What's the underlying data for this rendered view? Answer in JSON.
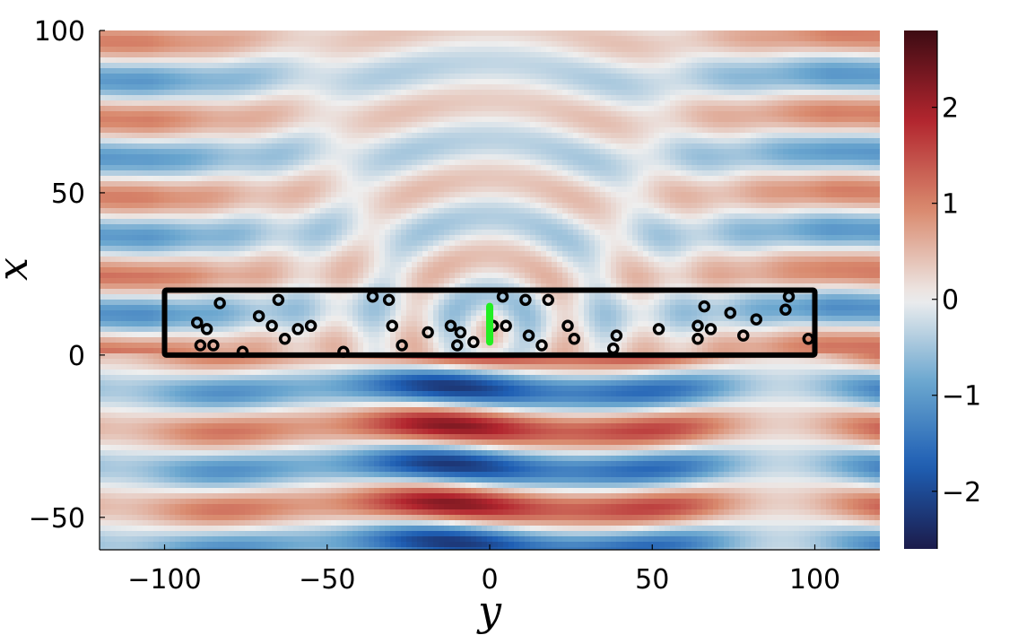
{
  "chart_data": {
    "type": "heatmap",
    "title": "",
    "xlabel": "y",
    "ylabel": "x",
    "xlim": [
      -120,
      120
    ],
    "ylim": [
      -60,
      100
    ],
    "xticks": [
      -100,
      -50,
      0,
      50,
      100
    ],
    "yticks": [
      -50,
      0,
      50,
      100
    ],
    "xtick_labels": [
      "−100",
      "−50",
      "0",
      "50",
      "100"
    ],
    "ytick_labels": [
      "−50",
      "0",
      "50",
      "100"
    ],
    "colorbar": {
      "range": [
        -2.6,
        2.8
      ],
      "ticks": [
        -2,
        -1,
        0,
        1,
        2
      ],
      "tick_labels": [
        "−2",
        "−1",
        "0",
        "1",
        "2"
      ],
      "colormap": "RdBu (reversed: blue negative, red positive)",
      "stops": [
        "#1b1b4b",
        "#1f5fb4",
        "#6aa6cf",
        "#eeeeee",
        "#d98a6e",
        "#b2252e",
        "#3d0b13"
      ]
    },
    "region_box": {
      "y_range": [
        -100,
        100
      ],
      "x_range": [
        0,
        20
      ],
      "color": "#000000"
    },
    "source_segment": {
      "y": 0,
      "x_range": [
        4,
        15
      ],
      "color": "#22ee22"
    },
    "scatterers": [
      [
        -90,
        10
      ],
      [
        -87,
        8
      ],
      [
        -89,
        3
      ],
      [
        -85,
        3
      ],
      [
        -83,
        16
      ],
      [
        -76,
        1
      ],
      [
        -71,
        12
      ],
      [
        -67,
        9
      ],
      [
        -65,
        17
      ],
      [
        -63,
        5
      ],
      [
        -59,
        8
      ],
      [
        -55,
        9
      ],
      [
        -45,
        1
      ],
      [
        -36,
        18
      ],
      [
        -31,
        17
      ],
      [
        -30,
        9
      ],
      [
        -27,
        3
      ],
      [
        -19,
        7
      ],
      [
        -12,
        9
      ],
      [
        -10,
        3
      ],
      [
        -9,
        7
      ],
      [
        -5,
        4
      ],
      [
        1,
        9
      ],
      [
        4,
        18
      ],
      [
        5,
        9
      ],
      [
        11,
        17
      ],
      [
        12,
        6
      ],
      [
        16,
        3
      ],
      [
        18,
        17
      ],
      [
        24,
        9
      ],
      [
        26,
        5
      ],
      [
        38,
        2
      ],
      [
        39,
        6
      ],
      [
        52,
        8
      ],
      [
        64,
        5
      ],
      [
        64,
        9
      ],
      [
        66,
        15
      ],
      [
        68,
        8
      ],
      [
        74,
        13
      ],
      [
        78,
        6
      ],
      [
        82,
        11
      ],
      [
        91,
        14
      ],
      [
        92,
        18
      ],
      [
        98,
        5
      ]
    ]
  }
}
